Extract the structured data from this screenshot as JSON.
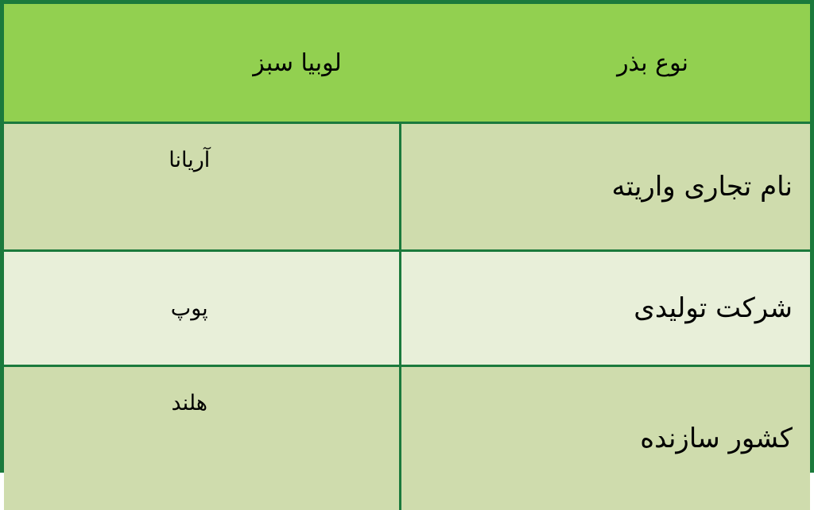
{
  "table": {
    "header": [
      "نوع بذر",
      "لوبیا سبز"
    ],
    "rows": [
      [
        "نام تجاری واریته",
        "آریانا"
      ],
      [
        "شرکت تولیدی",
        "پوپ"
      ],
      [
        "کشور سازنده",
        "هلند"
      ]
    ]
  }
}
